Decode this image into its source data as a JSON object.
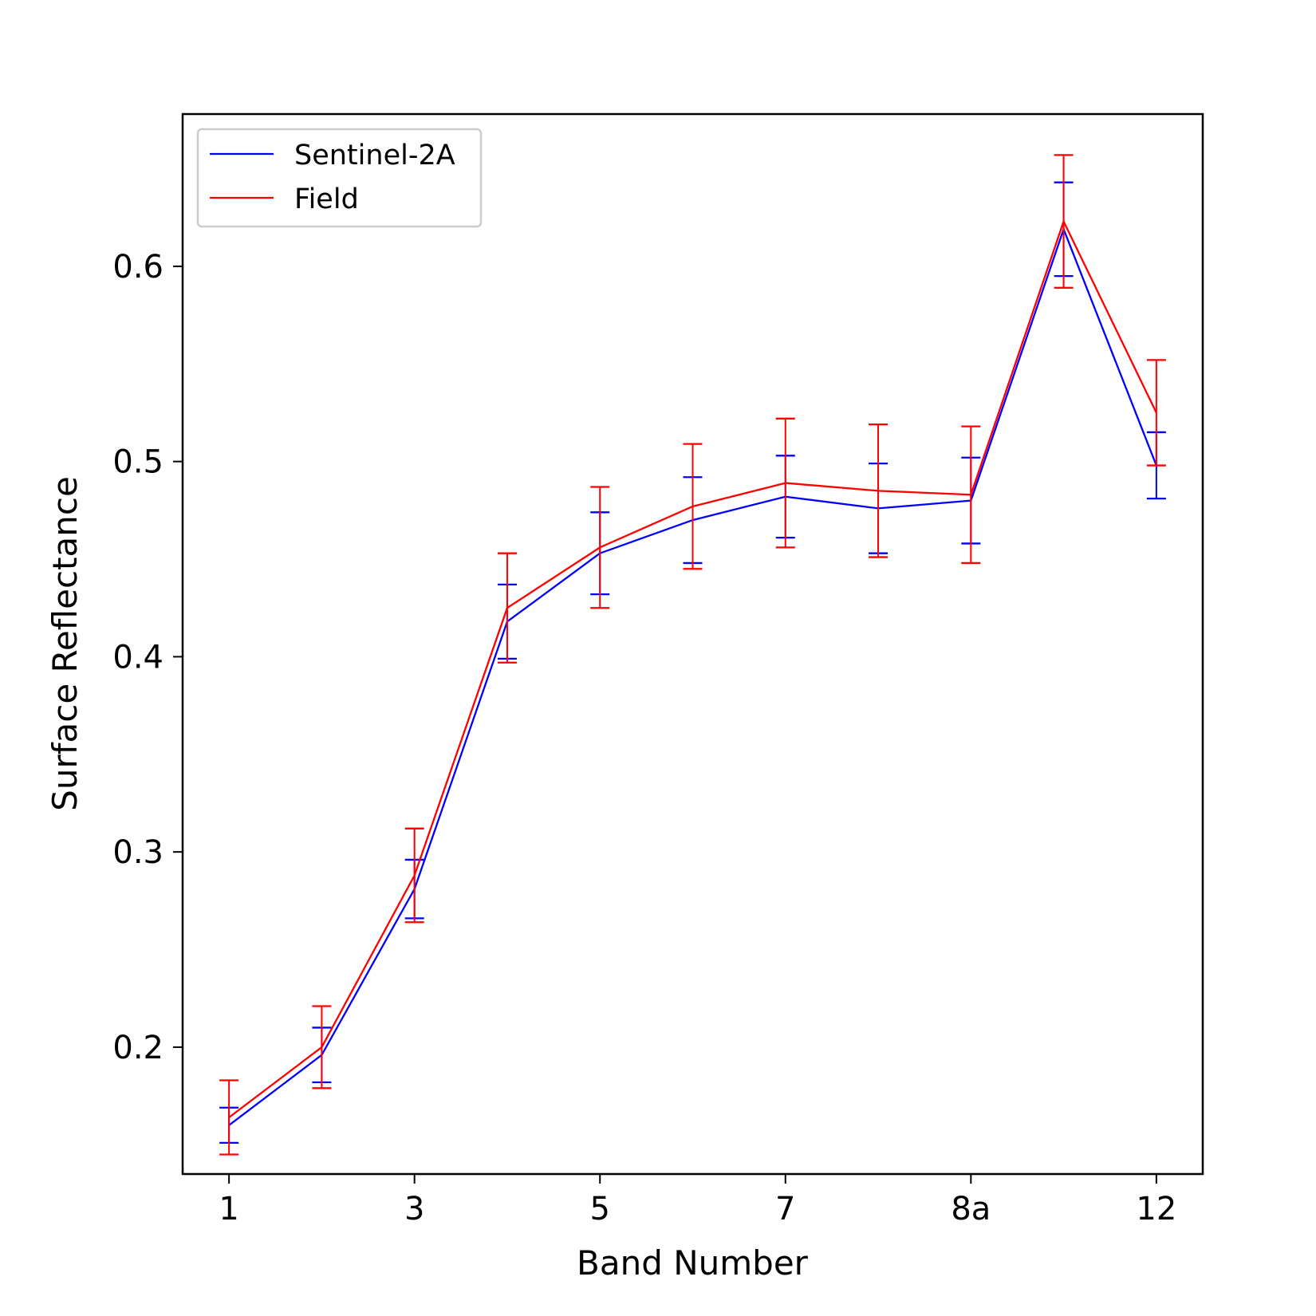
{
  "chart_data": {
    "type": "line",
    "title": "",
    "xlabel": "Band Number",
    "ylabel": "Surface Reflectance",
    "x_tick_labels": [
      "1",
      "3",
      "5",
      "7",
      "8a",
      "12"
    ],
    "x_tick_indices": [
      0,
      2,
      4,
      6,
      8,
      10
    ],
    "x_index": [
      0,
      1,
      2,
      3,
      4,
      5,
      6,
      7,
      8,
      9,
      10
    ],
    "y_ticks": [
      "0.2",
      "0.3",
      "0.4",
      "0.5",
      "0.6"
    ],
    "y_tick_values": [
      0.2,
      0.3,
      0.4,
      0.5,
      0.6
    ],
    "xlim": [
      -0.5,
      10.5
    ],
    "ylim": [
      0.135,
      0.678
    ],
    "grid": false,
    "legend_position": "top-left",
    "series": [
      {
        "name": "Sentinel-2A",
        "color": "#0000ff",
        "values": [
          0.16,
          0.196,
          0.281,
          0.418,
          0.453,
          0.47,
          0.482,
          0.476,
          0.48,
          0.619,
          0.498
        ],
        "error": [
          0.009,
          0.014,
          0.015,
          0.019,
          0.021,
          0.022,
          0.021,
          0.023,
          0.022,
          0.024,
          0.017
        ]
      },
      {
        "name": "Field",
        "color": "#ff0000",
        "values": [
          0.164,
          0.2,
          0.288,
          0.425,
          0.456,
          0.477,
          0.489,
          0.485,
          0.483,
          0.623,
          0.525
        ],
        "error": [
          0.019,
          0.021,
          0.024,
          0.028,
          0.031,
          0.032,
          0.033,
          0.034,
          0.035,
          0.034,
          0.027
        ]
      }
    ]
  }
}
